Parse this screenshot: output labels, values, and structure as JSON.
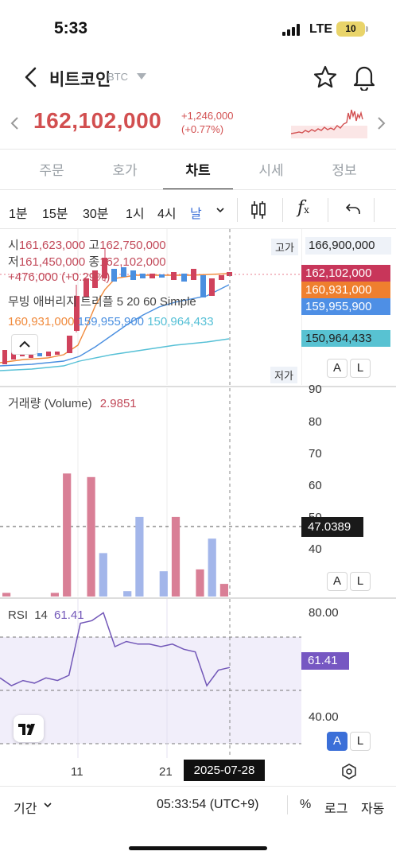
{
  "status": {
    "time": "5:33",
    "network": "LTE",
    "battery": "10"
  },
  "header": {
    "coin_name": "비트코인",
    "coin_symbol": "BTC"
  },
  "ticker": {
    "price": "162,102,000",
    "change_abs": "+1,246,000",
    "change_pct": "(+0.77%)"
  },
  "tabs": [
    {
      "label": "주문"
    },
    {
      "label": "호가"
    },
    {
      "label": "차트"
    },
    {
      "label": "시세"
    },
    {
      "label": "정보"
    }
  ],
  "active_tab": "차트",
  "timeframes": [
    {
      "label": "1분"
    },
    {
      "label": "15분"
    },
    {
      "label": "30분"
    },
    {
      "label": "1시"
    },
    {
      "label": "4시"
    },
    {
      "label": "날"
    }
  ],
  "active_timeframe": "날",
  "ohlc": {
    "open_label": "시",
    "open": "161,623,000",
    "high_label": "고",
    "high": "162,750,000",
    "low_label": "저",
    "low": "161,450,000",
    "close_label": "종",
    "close": "162,102,000",
    "change": "+476,000 (+0.29%)"
  },
  "ma": {
    "title": "무빙 애버리지 트리플 5 20 60 Simple",
    "v1": "160,931,000",
    "v2": "159,955,900",
    "v3": "150,964,433",
    "colors": [
      "#f08a3c",
      "#4a8fe0",
      "#56c0d6"
    ]
  },
  "price_axis": {
    "high_tag": "고가",
    "high_value": "166,900,000",
    "low_tag": "저가",
    "labels": [
      {
        "value": "162,102,000",
        "color": "#c8365a"
      },
      {
        "value": "160,931,000",
        "color": "#ef7f2e"
      },
      {
        "value": "159,955,900",
        "color": "#4e8fe5"
      },
      {
        "value": "150,964,433",
        "color": "#58c2d2"
      }
    ]
  },
  "volume": {
    "title": "거래량 (Volume)",
    "value": "2.9851",
    "axis": [
      "90",
      "80",
      "70",
      "60",
      "50",
      "40"
    ],
    "current_tag": "47.0389",
    "bars": [
      {
        "v": 1,
        "up": true
      },
      {
        "v": 0,
        "up": true
      },
      {
        "v": 0,
        "up": true
      },
      {
        "v": 0,
        "up": true
      },
      {
        "v": 1,
        "up": true
      },
      {
        "v": 34,
        "up": true
      },
      {
        "v": 0,
        "up": true
      },
      {
        "v": 33,
        "up": true
      },
      {
        "v": 12,
        "up": false
      },
      {
        "v": 0,
        "up": true
      },
      {
        "v": 1.5,
        "up": false
      },
      {
        "v": 22,
        "up": false
      },
      {
        "v": 0,
        "up": true
      },
      {
        "v": 7,
        "up": false
      },
      {
        "v": 22,
        "up": true
      },
      {
        "v": 0,
        "up": true
      },
      {
        "v": 7.5,
        "up": true
      },
      {
        "v": 16,
        "up": false
      },
      {
        "v": 3.5,
        "up": true
      }
    ]
  },
  "rsi": {
    "label": "RSI",
    "period": "14",
    "value": "61.41",
    "axis_top": "80.00",
    "axis_bottom": "40.00",
    "values": [
      57,
      54,
      56,
      55,
      57,
      56,
      58,
      78,
      79,
      82,
      69,
      71,
      70,
      70,
      69,
      70,
      68,
      67,
      54,
      60,
      61
    ]
  },
  "x_axis": {
    "labels": [
      "11",
      "21"
    ],
    "cursor_date": "2025-07-28"
  },
  "buttons": {
    "a": "A",
    "l": "L"
  },
  "footer": {
    "period": "기간",
    "time": "05:33:54 (UTC+9)",
    "percent": "%",
    "log": "로그",
    "auto": "자동"
  }
}
